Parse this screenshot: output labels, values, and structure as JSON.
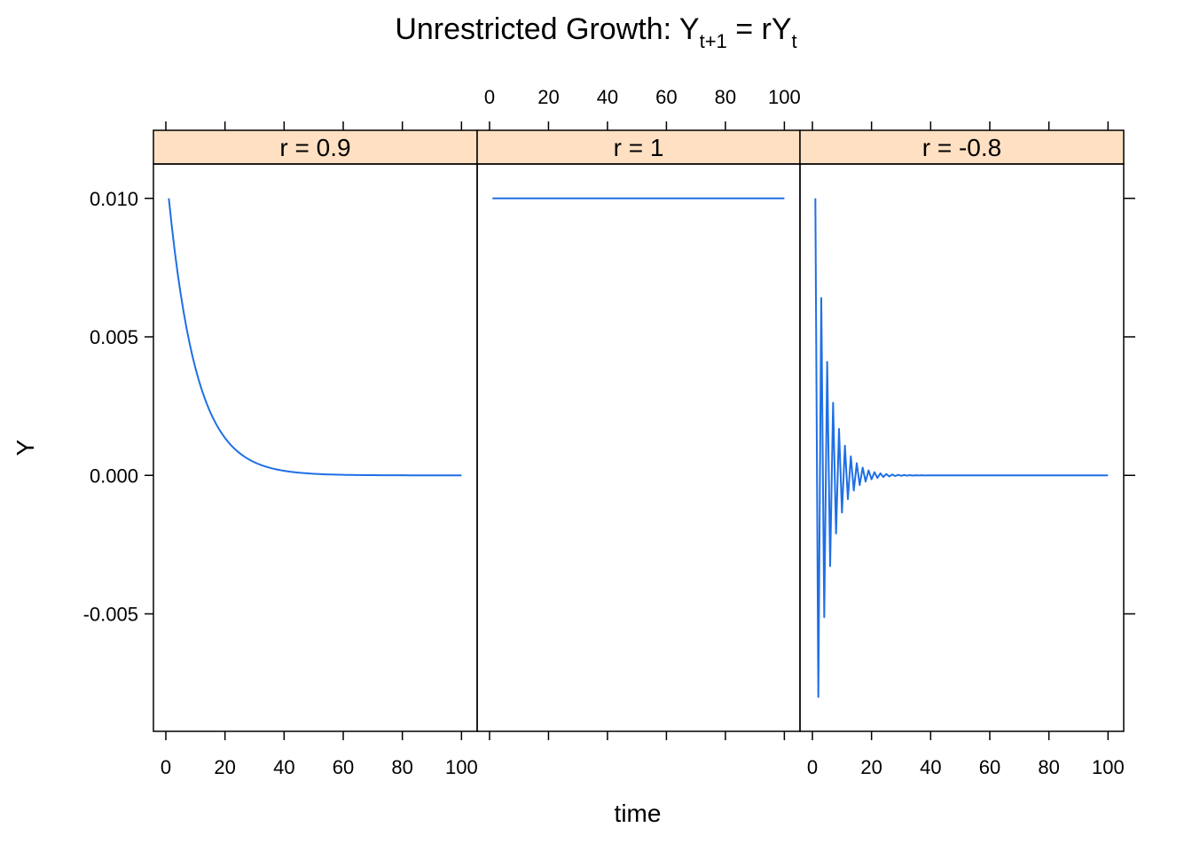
{
  "colors": {
    "line": "#1f6fe5",
    "strip_bg": "#ffe0c2",
    "frame": "#000000"
  },
  "title": {
    "main": "Unrestricted Growth: Y",
    "sub1": "t+1",
    "mid": " = rY",
    "sub2": "t"
  },
  "chart_data": {
    "type": "line",
    "layout": "trellis-3-panels",
    "xlabel": "time",
    "ylabel": "Y",
    "xlim": [
      -4.2,
      105.3
    ],
    "ylim": [
      -0.00924,
      0.01124
    ],
    "xticks": [
      0,
      20,
      40,
      60,
      80,
      100
    ],
    "xtick_labels": [
      "0",
      "20",
      "40",
      "60",
      "80",
      "100"
    ],
    "yticks": [
      -0.005,
      0.0,
      0.005,
      0.01
    ],
    "ytick_labels": [
      "-0.005",
      "0.000",
      "0.005",
      "0.010"
    ],
    "panels": [
      {
        "strip": "r = 0.9",
        "r": 0.9,
        "y0": 0.01,
        "t_start": 1,
        "t_end": 100
      },
      {
        "strip": "r = 1",
        "r": 1,
        "y0": 0.01,
        "t_start": 1,
        "t_end": 100
      },
      {
        "strip": "r = -0.8",
        "r": -0.8,
        "y0": 0.01,
        "t_start": 1,
        "t_end": 100
      }
    ]
  }
}
